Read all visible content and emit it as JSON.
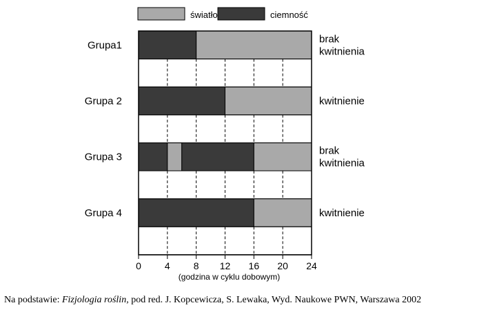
{
  "chart_data": {
    "type": "bar",
    "orientation": "horizontal-stacked",
    "legend": [
      {
        "name": "światło",
        "color": "#a9a9a9"
      },
      {
        "name": "ciemność",
        "color": "#3a3a3a"
      }
    ],
    "legend_position": "top",
    "xlabel": "(godzina w cyklu dobowym)",
    "xlim": [
      0,
      24
    ],
    "xticks": [
      0,
      4,
      8,
      12,
      16,
      20,
      24
    ],
    "grid": "vertical-dashed",
    "groups": [
      {
        "name": "Grupa1",
        "result": [
          "brak",
          "kwitnienia"
        ],
        "segments": [
          {
            "start": 0,
            "end": 8,
            "state": "ciemność"
          },
          {
            "start": 8,
            "end": 24,
            "state": "światło"
          }
        ]
      },
      {
        "name": "Grupa 2",
        "result": [
          "kwitnienie"
        ],
        "segments": [
          {
            "start": 0,
            "end": 12,
            "state": "ciemność"
          },
          {
            "start": 12,
            "end": 24,
            "state": "światło"
          }
        ]
      },
      {
        "name": "Grupa 3",
        "result": [
          "brak",
          "kwitnienia"
        ],
        "segments": [
          {
            "start": 0,
            "end": 4,
            "state": "ciemność"
          },
          {
            "start": 4,
            "end": 6,
            "state": "światło"
          },
          {
            "start": 6,
            "end": 16,
            "state": "ciemność"
          },
          {
            "start": 16,
            "end": 24,
            "state": "światło"
          }
        ]
      },
      {
        "name": "Grupa 4",
        "result": [
          "kwitnienie"
        ],
        "segments": [
          {
            "start": 0,
            "end": 16,
            "state": "ciemność"
          },
          {
            "start": 16,
            "end": 24,
            "state": "światło"
          }
        ]
      }
    ]
  },
  "source": {
    "prefix": "Na podstawie: ",
    "book": "Fizjologia roślin",
    "rest": ", pod red. J. Kopcewicza, S. Lewaka, Wyd. Naukowe PWN, Warszawa 2002"
  }
}
